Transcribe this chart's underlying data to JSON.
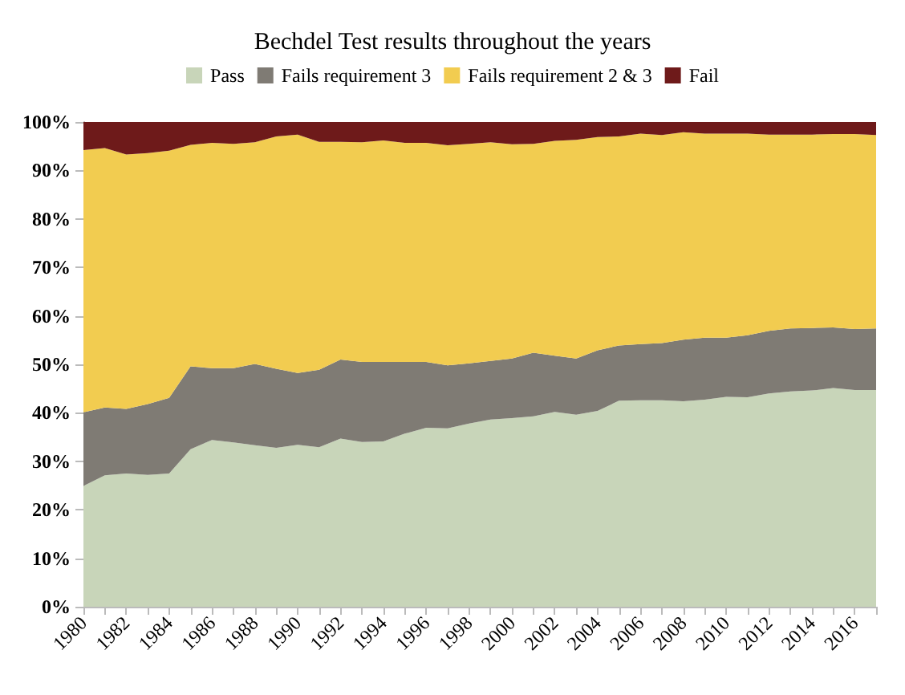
{
  "chart_data": {
    "type": "area",
    "title": "Bechdel Test results throughout the years",
    "stacked": true,
    "legend": "top",
    "grid": false,
    "x": [
      1980,
      1981,
      1982,
      1983,
      1984,
      1985,
      1986,
      1987,
      1988,
      1989,
      1990,
      1991,
      1992,
      1993,
      1994,
      1995,
      1996,
      1997,
      1998,
      1999,
      2000,
      2001,
      2002,
      2003,
      2004,
      2005,
      2006,
      2007,
      2008,
      2009,
      2010,
      2011,
      2012,
      2013,
      2014,
      2015,
      2016,
      2017
    ],
    "xlim": [
      1980,
      2017
    ],
    "xticks": [
      1980,
      {
        "value": 1981,
        "label": null
      },
      1982,
      {
        "value": 1983,
        "label": null
      },
      1984,
      {
        "value": 1985,
        "label": null
      },
      1986,
      {
        "value": 1987,
        "label": null
      },
      1988,
      {
        "value": 1989,
        "label": null
      },
      1990,
      {
        "value": 1991,
        "label": null
      },
      1992,
      {
        "value": 1993,
        "label": null
      },
      1994,
      {
        "value": 1995,
        "label": null
      },
      1996,
      {
        "value": 1997,
        "label": null
      },
      1998,
      {
        "value": 1999,
        "label": null
      },
      2000,
      {
        "value": 2001,
        "label": null
      },
      2002,
      {
        "value": 2003,
        "label": null
      },
      2004,
      {
        "value": 2005,
        "label": null
      },
      2006,
      {
        "value": 2007,
        "label": null
      },
      2008,
      {
        "value": 2009,
        "label": null
      },
      2010,
      {
        "value": 2011,
        "label": null
      },
      2012,
      {
        "value": 2013,
        "label": null
      },
      2014,
      {
        "value": 2015,
        "label": null
      },
      2016,
      {
        "value": 2017,
        "label": null
      }
    ],
    "ylim": [
      0,
      100
    ],
    "yticks": [
      {
        "value": 0,
        "label": "0%"
      },
      {
        "value": 10,
        "label": "10%"
      },
      {
        "value": 20,
        "label": "20%"
      },
      {
        "value": 30,
        "label": "30%"
      },
      {
        "value": 40,
        "label": "40%"
      },
      {
        "value": 50,
        "label": "50%"
      },
      {
        "value": 60,
        "label": "60%"
      },
      {
        "value": 70,
        "label": "70%"
      },
      {
        "value": 80,
        "label": "80%"
      },
      {
        "value": 90,
        "label": "90%"
      },
      {
        "value": 100,
        "label": "100%"
      }
    ],
    "series": [
      {
        "name": "Pass",
        "color": "#c8d5b9",
        "values": [
          24.9,
          27.1,
          27.5,
          27.2,
          27.5,
          32.5,
          34.4,
          33.9,
          33.3,
          32.8,
          33.4,
          32.9,
          34.7,
          34.0,
          34.1,
          35.7,
          36.9,
          36.8,
          37.8,
          38.6,
          38.9,
          39.3,
          40.2,
          39.6,
          40.4,
          42.5,
          42.6,
          42.6,
          42.4,
          42.7,
          43.3,
          43.2,
          44.0,
          44.4,
          44.6,
          45.1,
          44.7,
          44.7
        ]
      },
      {
        "name": "Fails requirement 3",
        "color": "#7f7b74",
        "values": [
          15.2,
          14.0,
          13.3,
          14.6,
          15.6,
          17.1,
          14.8,
          15.3,
          16.8,
          16.3,
          14.8,
          16.0,
          16.3,
          16.5,
          16.4,
          14.8,
          13.6,
          13.0,
          12.4,
          12.1,
          12.3,
          13.1,
          11.6,
          11.6,
          12.5,
          11.4,
          11.6,
          11.8,
          12.7,
          12.8,
          12.2,
          12.8,
          12.9,
          13.0,
          12.9,
          12.5,
          12.6,
          12.7
        ]
      },
      {
        "name": "Fails requirement 2 & 3",
        "color": "#f2cc50",
        "values": [
          54.1,
          53.5,
          52.5,
          51.8,
          51.0,
          45.7,
          46.5,
          46.3,
          45.7,
          47.9,
          49.2,
          47.0,
          44.9,
          45.3,
          45.7,
          45.2,
          45.2,
          45.4,
          45.3,
          45.1,
          44.2,
          43.1,
          44.3,
          45.1,
          44.0,
          43.1,
          43.4,
          42.9,
          42.8,
          42.1,
          42.1,
          41.6,
          40.5,
          40.0,
          39.9,
          39.9,
          40.2,
          39.9
        ]
      },
      {
        "name": "Fail",
        "color": "#6e1a1a",
        "values": [
          5.8,
          5.4,
          6.7,
          6.4,
          5.9,
          4.7,
          4.3,
          4.5,
          4.2,
          3.0,
          2.6,
          4.1,
          4.1,
          4.2,
          3.8,
          4.3,
          4.3,
          4.8,
          4.5,
          4.2,
          4.6,
          4.5,
          3.9,
          3.7,
          3.1,
          3.0,
          2.4,
          2.7,
          2.1,
          2.4,
          2.4,
          2.4,
          2.6,
          2.6,
          2.6,
          2.5,
          2.5,
          2.7
        ]
      }
    ]
  }
}
